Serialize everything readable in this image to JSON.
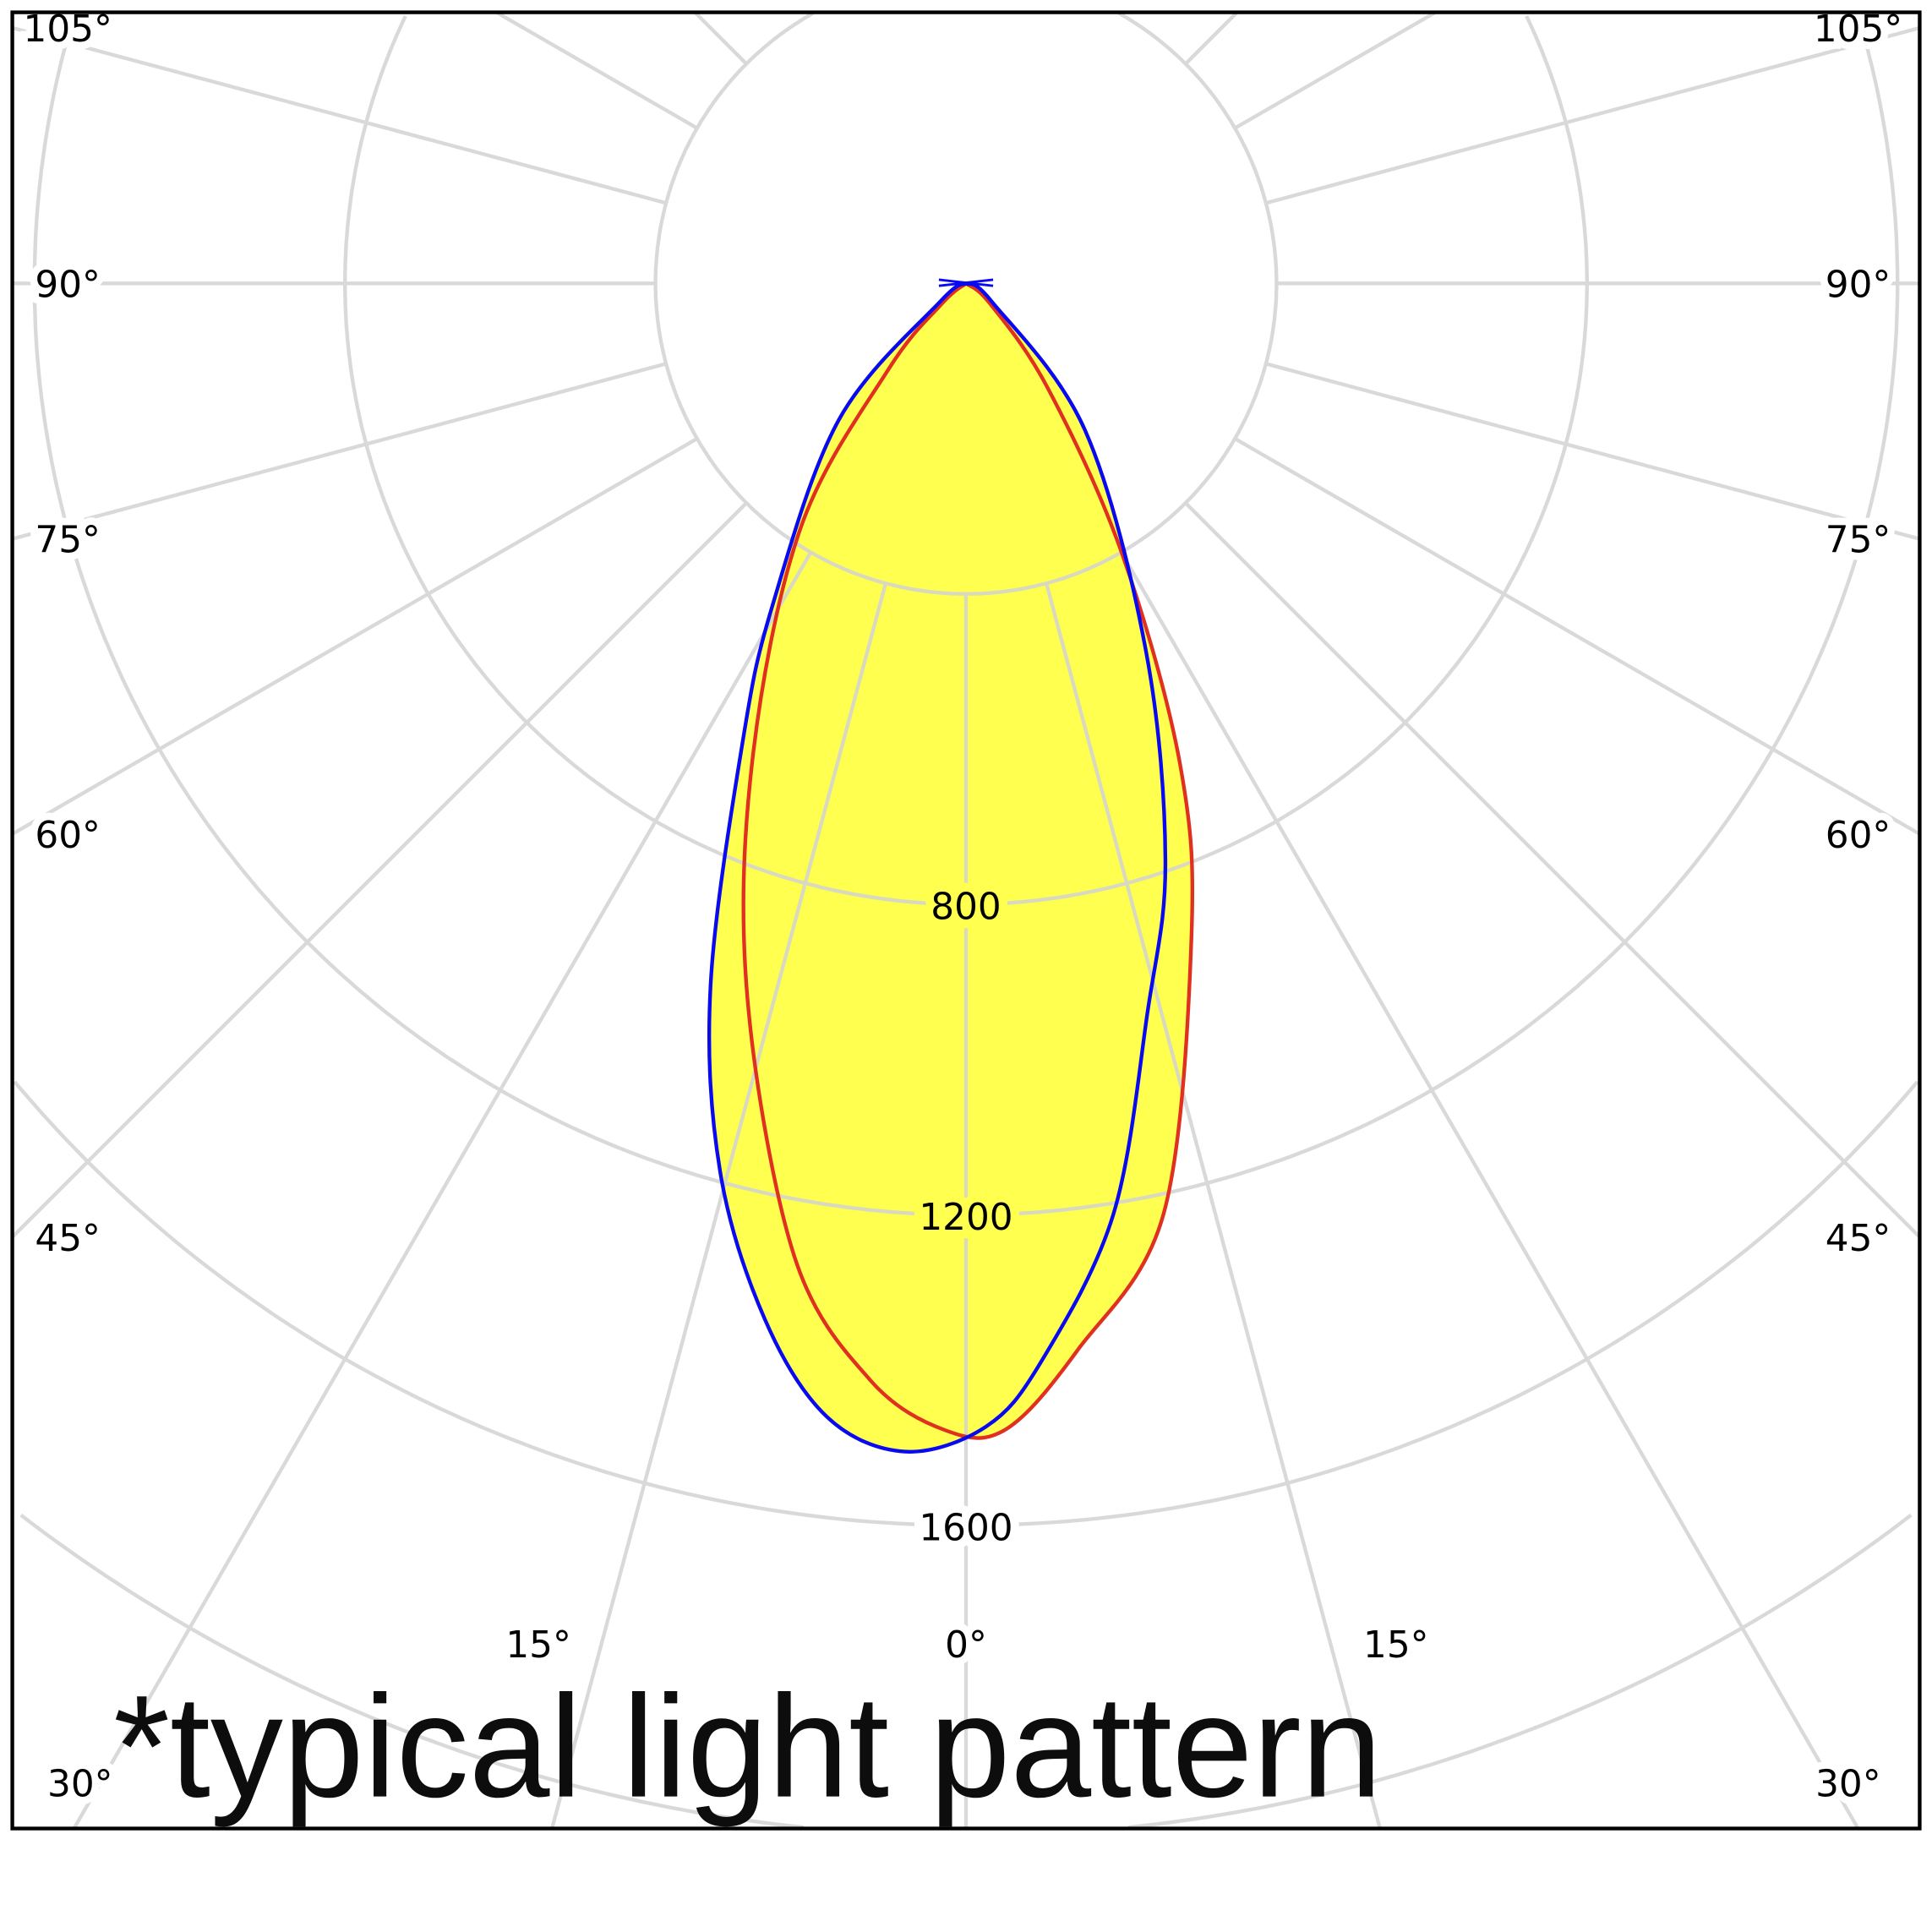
{
  "chart_data": {
    "type": "polar",
    "title": "",
    "annotation": "*typical light pattern",
    "radial_ticks": [
      800,
      1200,
      1600
    ],
    "radial_grid": [
      400,
      800,
      1200,
      1600,
      2000,
      2400
    ],
    "angle_grid_step": 15,
    "side_angle_labels": [
      "105°",
      "90°",
      "75°",
      "60°",
      "45°"
    ],
    "side_angle_values": [
      105,
      90,
      75,
      60,
      45
    ],
    "bottom_angle_labels": [
      "30°",
      "15°",
      "0°",
      "15°",
      "30°"
    ],
    "bottom_angle_values": [
      -30,
      -15,
      0,
      15,
      30
    ],
    "grid": true,
    "colors": {
      "fill": "#ffff50",
      "grid": "#d3d3d3",
      "series_red": "#e03020",
      "series_blue": "#0a0af0",
      "frame": "#000000"
    },
    "series": [
      {
        "color": "red",
        "points": [
          [
            -90,
            0
          ],
          [
            -50,
            40
          ],
          [
            -42,
            150
          ],
          [
            -34,
            382
          ],
          [
            -24,
            678
          ],
          [
            -17,
            963
          ],
          [
            -10,
            1273
          ],
          [
            -5,
            1418
          ],
          [
            -1,
            1478
          ],
          [
            2,
            1477
          ],
          [
            6,
            1381
          ],
          [
            12,
            1225
          ],
          [
            19,
            892
          ],
          [
            24,
            678
          ],
          [
            30,
            402
          ],
          [
            38,
            171
          ],
          [
            50,
            40
          ],
          [
            90,
            0
          ]
        ]
      },
      {
        "color": "blue",
        "points": [
          [
            -90,
            0
          ],
          [
            -55,
            40
          ],
          [
            -43,
            240
          ],
          [
            -31,
            484
          ],
          [
            -26,
            656
          ],
          [
            -20,
            962
          ],
          [
            -15.5,
            1186
          ],
          [
            -11,
            1359
          ],
          [
            -7,
            1471
          ],
          [
            -3,
            1507
          ],
          [
            1,
            1473
          ],
          [
            4,
            1392
          ],
          [
            9,
            1214
          ],
          [
            14,
            967
          ],
          [
            19,
            789
          ],
          [
            26,
            530
          ],
          [
            39,
            244
          ],
          [
            55,
            40
          ],
          [
            90,
            0
          ]
        ]
      }
    ]
  }
}
